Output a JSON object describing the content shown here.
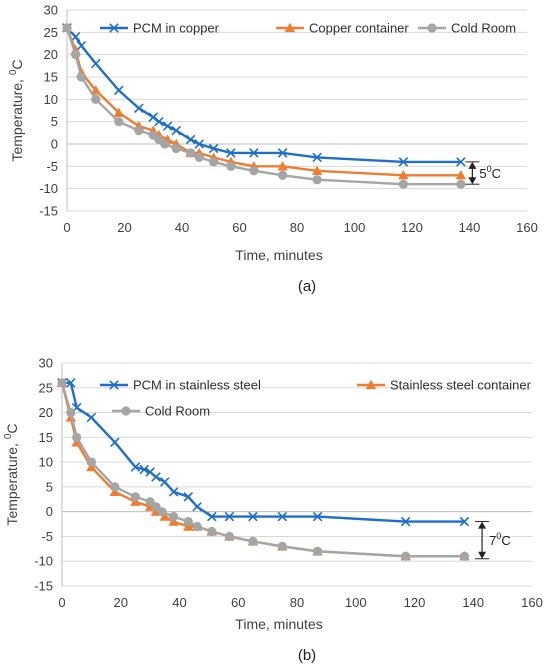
{
  "chart_data": [
    {
      "type": "line",
      "caption": "(a)",
      "xlabel": "Time, minutes",
      "ylabel_main": "Temperature,",
      "ylabel_sup": "0",
      "ylabel_unit": "C",
      "xlim": [
        0,
        160
      ],
      "ylim": [
        -15,
        30
      ],
      "xticks": [
        0,
        20,
        40,
        60,
        80,
        100,
        120,
        140,
        160
      ],
      "yticks": [
        -15,
        -10,
        -5,
        0,
        5,
        10,
        15,
        20,
        25,
        30
      ],
      "grid": "horizontal",
      "legend": "top",
      "annotation": {
        "main": "5",
        "sup": "0",
        "unit": "C",
        "x": 141,
        "y_top": -4,
        "y_bottom": -9
      },
      "series": [
        {
          "name": "PCM in copper",
          "color": "#1f6fc8",
          "marker": "x",
          "points": [
            [
              0,
              26
            ],
            [
              3,
              24
            ],
            [
              5,
              22
            ],
            [
              10,
              18
            ],
            [
              18,
              12
            ],
            [
              25,
              8
            ],
            [
              30,
              6
            ],
            [
              32,
              5
            ],
            [
              35,
              4
            ],
            [
              38,
              3
            ],
            [
              43,
              1
            ],
            [
              46,
              0
            ],
            [
              51,
              -1
            ],
            [
              57,
              -2
            ],
            [
              65,
              -2
            ],
            [
              75,
              -2
            ],
            [
              87,
              -3
            ],
            [
              117,
              -4
            ],
            [
              137,
              -4
            ]
          ]
        },
        {
          "name": "Copper container",
          "color": "#ed7d31",
          "marker": "triangle",
          "points": [
            [
              0,
              26
            ],
            [
              3,
              21
            ],
            [
              5,
              16
            ],
            [
              10,
              12
            ],
            [
              18,
              7
            ],
            [
              25,
              4
            ],
            [
              30,
              3
            ],
            [
              32,
              2
            ],
            [
              35,
              1
            ],
            [
              38,
              0
            ],
            [
              43,
              -2
            ],
            [
              46,
              -2
            ],
            [
              51,
              -3
            ],
            [
              57,
              -4
            ],
            [
              65,
              -5
            ],
            [
              75,
              -5
            ],
            [
              87,
              -6
            ],
            [
              117,
              -7
            ],
            [
              137,
              -7
            ]
          ]
        },
        {
          "name": "Cold Room",
          "color": "#a5a5a5",
          "marker": "circle",
          "points": [
            [
              0,
              26
            ],
            [
              3,
              20
            ],
            [
              5,
              15
            ],
            [
              10,
              10
            ],
            [
              18,
              5
            ],
            [
              25,
              3
            ],
            [
              30,
              2
            ],
            [
              32,
              1
            ],
            [
              34,
              0
            ],
            [
              38,
              -1
            ],
            [
              43,
              -2
            ],
            [
              46,
              -3
            ],
            [
              51,
              -4
            ],
            [
              57,
              -5
            ],
            [
              65,
              -6
            ],
            [
              75,
              -7
            ],
            [
              87,
              -8
            ],
            [
              117,
              -9
            ],
            [
              137,
              -9
            ]
          ]
        }
      ]
    },
    {
      "type": "line",
      "caption": "(b)",
      "xlabel": "Time, minutes",
      "ylabel_main": "Temperature,",
      "ylabel_sup": "0",
      "ylabel_unit": "C",
      "xlim": [
        0,
        160
      ],
      "ylim": [
        -15,
        30
      ],
      "xticks": [
        0,
        20,
        40,
        60,
        80,
        100,
        120,
        140,
        160
      ],
      "yticks": [
        -15,
        -10,
        -5,
        0,
        5,
        10,
        15,
        20,
        25,
        30
      ],
      "grid": "horizontal",
      "legend": "top",
      "annotation": {
        "main": "7",
        "sup": "0",
        "unit": "C",
        "x": 143,
        "y_top": -2,
        "y_bottom": -9.5
      },
      "series": [
        {
          "name": "PCM in stainless  steel",
          "color": "#1f6fc8",
          "marker": "x",
          "points": [
            [
              0,
              26
            ],
            [
              3,
              26
            ],
            [
              5,
              21
            ],
            [
              10,
              19
            ],
            [
              18,
              14
            ],
            [
              25,
              9
            ],
            [
              28,
              8.5
            ],
            [
              30,
              8
            ],
            [
              32,
              7
            ],
            [
              35,
              6
            ],
            [
              38,
              4
            ],
            [
              43,
              3
            ],
            [
              46,
              1
            ],
            [
              51,
              -1
            ],
            [
              57,
              -1
            ],
            [
              65,
              -1
            ],
            [
              75,
              -1
            ],
            [
              87,
              -1
            ],
            [
              117,
              -2
            ],
            [
              137,
              -2
            ]
          ]
        },
        {
          "name": "Stainless steel container",
          "color": "#ed7d31",
          "marker": "triangle",
          "points": [
            [
              0,
              26
            ],
            [
              3,
              19
            ],
            [
              5,
              14
            ],
            [
              10,
              9
            ],
            [
              18,
              4
            ],
            [
              25,
              2
            ],
            [
              30,
              1
            ],
            [
              32,
              0
            ],
            [
              35,
              -1
            ],
            [
              38,
              -2
            ],
            [
              43,
              -3
            ],
            [
              46,
              -3
            ],
            [
              51,
              -4
            ],
            [
              57,
              -5
            ],
            [
              65,
              -6
            ],
            [
              75,
              -7
            ],
            [
              87,
              -8
            ],
            [
              117,
              -9
            ],
            [
              137,
              -9
            ]
          ]
        },
        {
          "name": "Cold Room",
          "color": "#a5a5a5",
          "marker": "circle",
          "points": [
            [
              0,
              26
            ],
            [
              3,
              20
            ],
            [
              5,
              15
            ],
            [
              10,
              10
            ],
            [
              18,
              5
            ],
            [
              25,
              3
            ],
            [
              30,
              2
            ],
            [
              32,
              1
            ],
            [
              34,
              0
            ],
            [
              38,
              -1
            ],
            [
              43,
              -2
            ],
            [
              46,
              -3
            ],
            [
              51,
              -4
            ],
            [
              57,
              -5
            ],
            [
              65,
              -6
            ],
            [
              75,
              -7
            ],
            [
              87,
              -8
            ],
            [
              117,
              -9
            ],
            [
              137,
              -9
            ]
          ]
        }
      ]
    }
  ]
}
